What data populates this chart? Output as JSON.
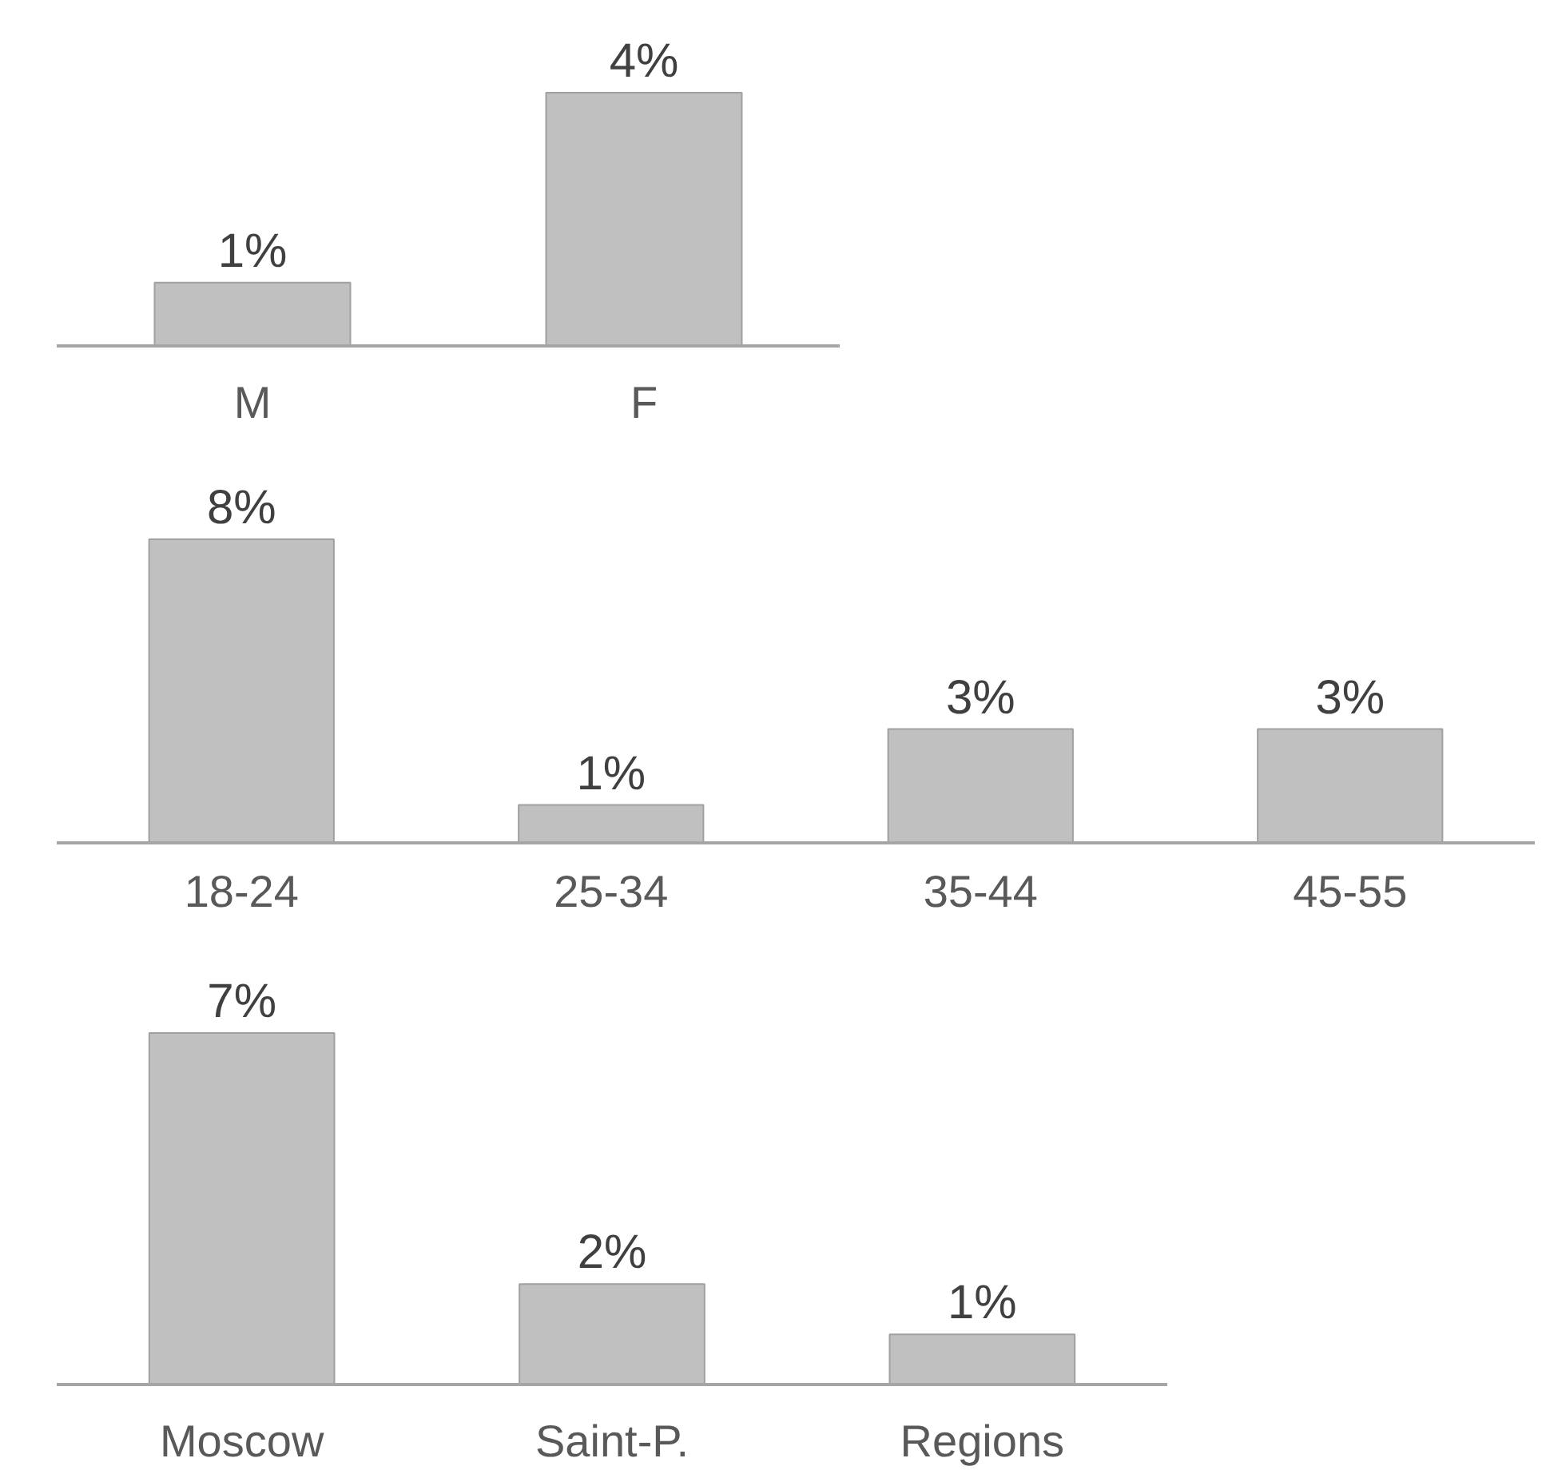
{
  "chart_data": [
    {
      "type": "bar",
      "categories": [
        "M",
        "F"
      ],
      "values": [
        1,
        4
      ],
      "value_labels": [
        "1%",
        "4%"
      ],
      "color": "#c0c0c0"
    },
    {
      "type": "bar",
      "categories": [
        "18-24",
        "25-34",
        "35-44",
        "45-55"
      ],
      "values": [
        8,
        1,
        3,
        3
      ],
      "value_labels": [
        "8%",
        "1%",
        "3%",
        "3%"
      ],
      "color": "#c0c0c0"
    },
    {
      "type": "bar",
      "categories": [
        "Moscow",
        "Saint-P.",
        "Regions"
      ],
      "values": [
        7,
        2,
        1
      ],
      "value_labels": [
        "7%",
        "2%",
        "1%"
      ],
      "color": "#c0c0c0"
    }
  ]
}
